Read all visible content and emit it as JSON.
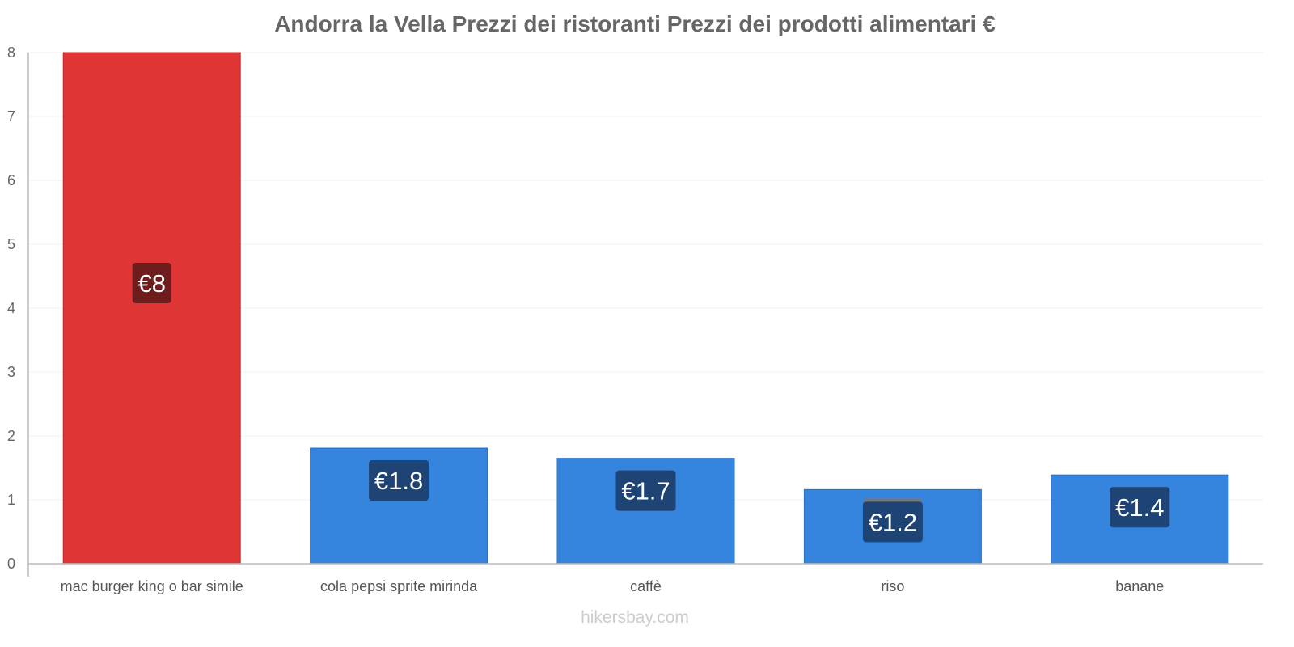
{
  "chart_data": {
    "type": "bar",
    "title": "Andorra la Vella Prezzi dei ristoranti Prezzi dei prodotti alimentari €",
    "categories": [
      "mac burger king o bar simile",
      "cola pepsi sprite mirinda",
      "caffè",
      "riso",
      "banane"
    ],
    "values": [
      8,
      1.81,
      1.65,
      1.16,
      1.39
    ],
    "data_labels": [
      "€8",
      "€1.8",
      "€1.7",
      "€1.2",
      "€1.4"
    ],
    "bar_colors": [
      "#e03535",
      "#3584de",
      "#3584de",
      "#3584de",
      "#3584de"
    ],
    "label_colors": [
      "#6e1c1c",
      "#1d4474",
      "#1d4474",
      "#1d4474",
      "#1d4474"
    ],
    "xlabel": "",
    "ylabel": "",
    "ylim": [
      0,
      8
    ],
    "yticks": [
      "0",
      "1",
      "2",
      "3",
      "4",
      "5",
      "6",
      "7",
      "8"
    ],
    "grid": true,
    "legend": "none"
  },
  "source": "hikersbay.com"
}
